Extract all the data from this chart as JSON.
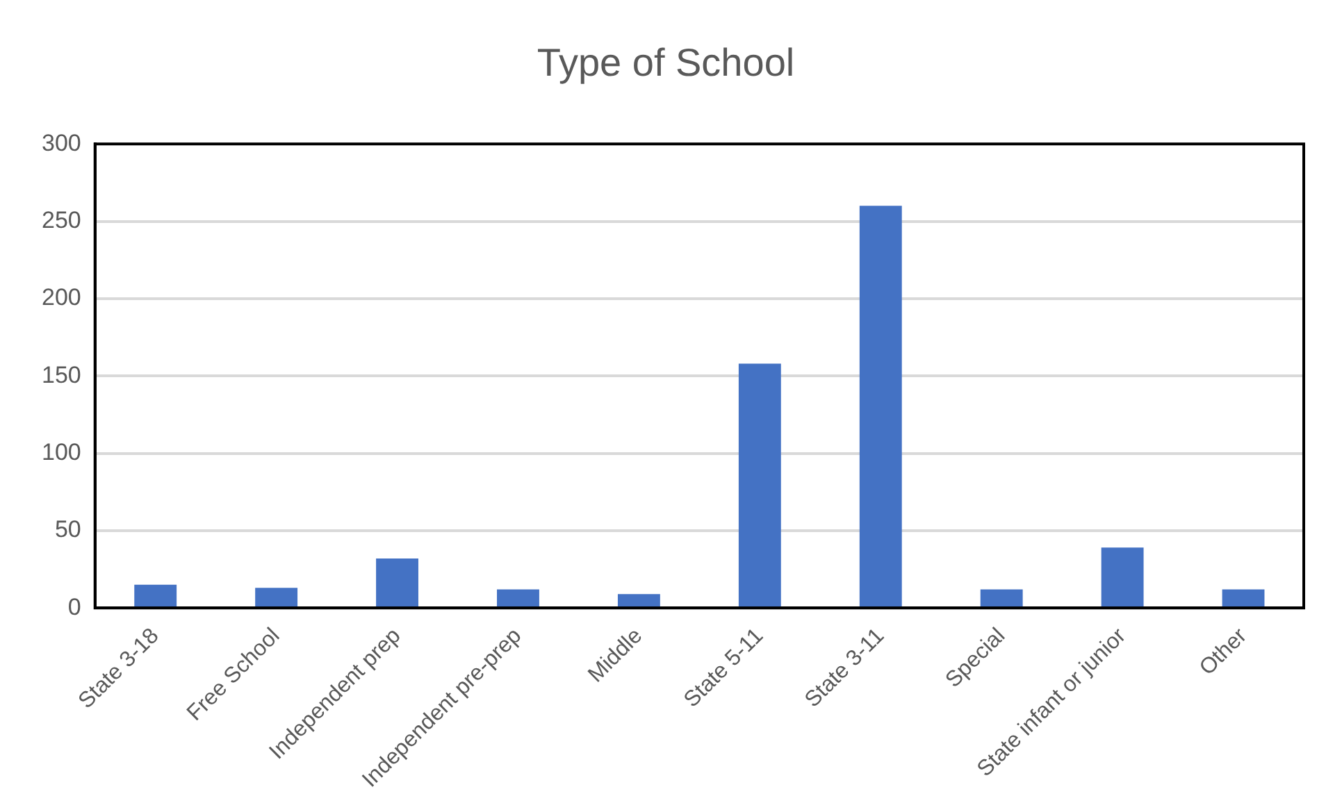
{
  "chart_data": {
    "type": "bar",
    "title": "Type of School",
    "categories": [
      "State 3-18",
      "Free School",
      "Independent prep",
      "Independent pre-prep",
      "Middle",
      "State 5-11",
      "State 3-11",
      "Special",
      "State infant or junior",
      "Other"
    ],
    "values": [
      15,
      13,
      32,
      12,
      9,
      158,
      260,
      12,
      39,
      12
    ],
    "color": "#4472c4",
    "ylim": [
      0,
      300
    ],
    "yticks": [
      0,
      50,
      100,
      150,
      200,
      250,
      300
    ],
    "grid": "y",
    "legend": false
  }
}
